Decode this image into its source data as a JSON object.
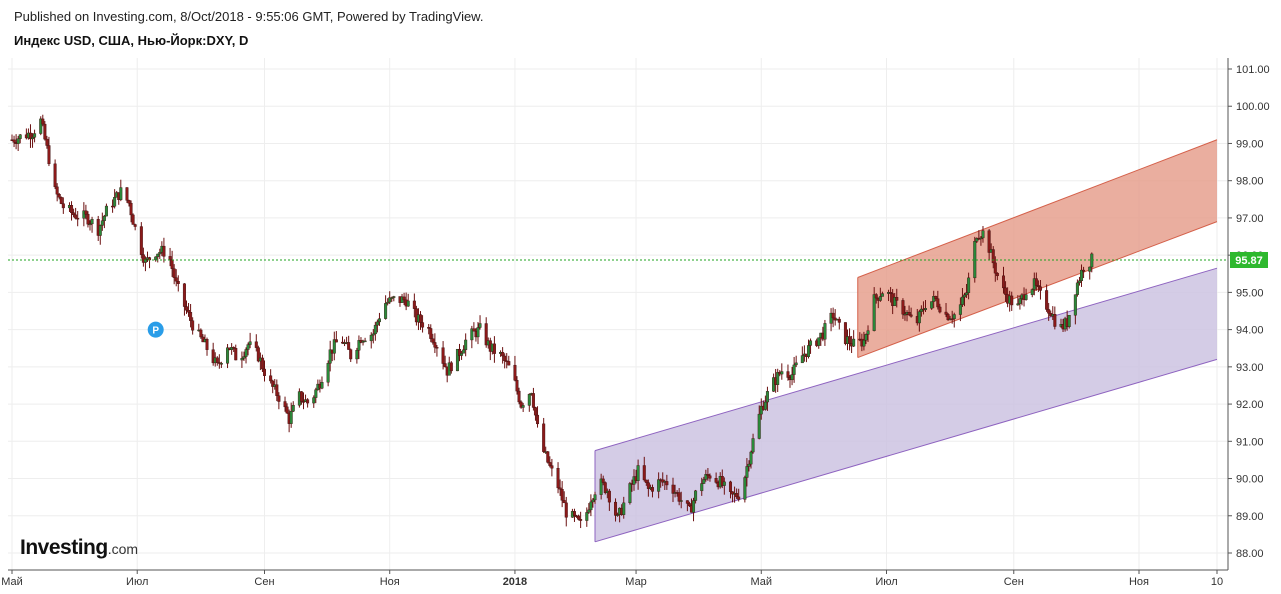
{
  "header": {
    "published": "Published on Investing.com, 8/Oct/2018 - 9:55:06 GMT, Powered by TradingView.",
    "symbol": "Индекс USD, США, Нью-Йорк:DXY, D"
  },
  "logo": {
    "main": "Investing",
    "suffix": ".com"
  },
  "marker": {
    "label": "P",
    "date_index": 70,
    "value": 94.0
  },
  "chart_data": {
    "type": "candlestick",
    "y_ticks": [
      "101.00",
      "100.00",
      "99.00",
      "98.00",
      "97.00",
      "96.00",
      "95.00",
      "94.00",
      "93.00",
      "92.00",
      "91.00",
      "90.00",
      "89.00",
      "88.00"
    ],
    "y_range": [
      87.6,
      101.25
    ],
    "x_ticks": [
      {
        "label": "Май",
        "day": 0
      },
      {
        "label": "Июл",
        "day": 61
      },
      {
        "label": "Сен",
        "day": 123
      },
      {
        "label": "Ноя",
        "day": 184
      },
      {
        "label": "2018",
        "day": 245
      },
      {
        "label": "Мар",
        "day": 304
      },
      {
        "label": "Май",
        "day": 365
      },
      {
        "label": "Июл",
        "day": 426
      },
      {
        "label": "Сен",
        "day": 488
      },
      {
        "label": "Ноя",
        "day": 549
      },
      {
        "label": "10",
        "day": 587
      }
    ],
    "x_range_days": [
      0,
      590
    ],
    "last_price": "95.87",
    "price_path": [
      [
        0,
        99.1
      ],
      [
        10,
        99.3
      ],
      [
        14,
        99.6
      ],
      [
        18,
        98.6
      ],
      [
        20,
        97.8
      ],
      [
        25,
        97.3
      ],
      [
        30,
        97.1
      ],
      [
        37,
        97.0
      ],
      [
        42,
        96.7
      ],
      [
        47,
        97.3
      ],
      [
        53,
        97.7
      ],
      [
        57,
        97.4
      ],
      [
        61,
        96.5
      ],
      [
        65,
        95.8
      ],
      [
        70,
        96.1
      ],
      [
        76,
        96.1
      ],
      [
        80,
        95.2
      ],
      [
        85,
        94.5
      ],
      [
        90,
        93.9
      ],
      [
        95,
        93.5
      ],
      [
        100,
        93.0
      ],
      [
        105,
        93.6
      ],
      [
        110,
        93.2
      ],
      [
        115,
        93.6
      ],
      [
        120,
        93.3
      ],
      [
        125,
        92.6
      ],
      [
        130,
        92.2
      ],
      [
        135,
        91.6
      ],
      [
        140,
        92.2
      ],
      [
        145,
        92.0
      ],
      [
        150,
        92.6
      ],
      [
        155,
        93.4
      ],
      [
        160,
        93.8
      ],
      [
        165,
        93.3
      ],
      [
        170,
        93.8
      ],
      [
        176,
        93.9
      ],
      [
        181,
        94.7
      ],
      [
        186,
        94.8
      ],
      [
        192,
        94.8
      ],
      [
        197,
        94.3
      ],
      [
        202,
        94.1
      ],
      [
        207,
        93.6
      ],
      [
        212,
        92.9
      ],
      [
        217,
        93.3
      ],
      [
        222,
        93.8
      ],
      [
        228,
        94.0
      ],
      [
        233,
        93.5
      ],
      [
        238,
        93.3
      ],
      [
        243,
        92.9
      ],
      [
        248,
        92.0
      ],
      [
        253,
        92.4
      ],
      [
        257,
        91.0
      ],
      [
        262,
        90.3
      ],
      [
        266,
        89.8
      ],
      [
        270,
        89.1
      ],
      [
        274,
        88.9
      ],
      [
        278,
        88.7
      ],
      [
        282,
        89.5
      ],
      [
        286,
        89.9
      ],
      [
        290,
        89.7
      ],
      [
        295,
        88.9
      ],
      [
        300,
        89.6
      ],
      [
        305,
        90.2
      ],
      [
        310,
        89.7
      ],
      [
        315,
        89.9
      ],
      [
        320,
        89.9
      ],
      [
        325,
        89.5
      ],
      [
        330,
        89.1
      ],
      [
        335,
        89.9
      ],
      [
        340,
        90.1
      ],
      [
        345,
        89.9
      ],
      [
        350,
        89.5
      ],
      [
        355,
        89.6
      ],
      [
        360,
        90.8
      ],
      [
        365,
        91.9
      ],
      [
        370,
        92.5
      ],
      [
        375,
        92.9
      ],
      [
        380,
        92.8
      ],
      [
        385,
        93.3
      ],
      [
        390,
        93.6
      ],
      [
        395,
        93.9
      ],
      [
        400,
        94.4
      ],
      [
        405,
        93.8
      ],
      [
        410,
        93.6
      ],
      [
        415,
        93.7
      ],
      [
        420,
        94.8
      ],
      [
        425,
        95.1
      ],
      [
        430,
        94.7
      ],
      [
        435,
        94.5
      ],
      [
        440,
        94.1
      ],
      [
        445,
        94.7
      ],
      [
        450,
        94.8
      ],
      [
        455,
        94.4
      ],
      [
        460,
        94.4
      ],
      [
        465,
        95.0
      ],
      [
        470,
        96.6
      ],
      [
        474,
        96.6
      ],
      [
        478,
        95.8
      ],
      [
        482,
        95.1
      ],
      [
        486,
        94.8
      ],
      [
        490,
        94.6
      ],
      [
        494,
        95.1
      ],
      [
        498,
        95.2
      ],
      [
        502,
        94.8
      ],
      [
        506,
        94.5
      ],
      [
        510,
        94.0
      ],
      [
        514,
        94.2
      ],
      [
        518,
        95.1
      ],
      [
        522,
        95.7
      ],
      [
        526,
        95.87
      ]
    ],
    "channels": [
      {
        "name": "lower",
        "upper_start": [
          284,
          90.75
        ],
        "upper_end": [
          587,
          95.65
        ],
        "lower_start": [
          284,
          88.3
        ],
        "lower_end": [
          587,
          93.2
        ],
        "fill": "#c9bfe0",
        "stroke": "#8e63c0"
      },
      {
        "name": "upper",
        "upper_start": [
          412,
          95.4
        ],
        "upper_end": [
          587,
          99.1
        ],
        "lower_start": [
          412,
          93.25
        ],
        "lower_end": [
          587,
          96.9
        ],
        "fill": "#e59a87",
        "stroke": "#d4604a"
      }
    ]
  }
}
